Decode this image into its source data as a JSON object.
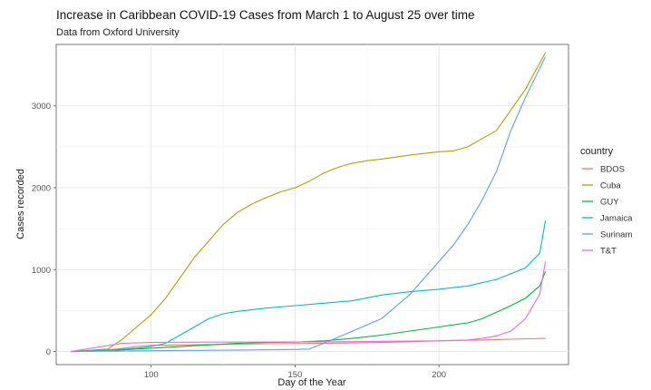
{
  "chart_data": {
    "type": "line",
    "title": "Increase in Caribbean COVID-19 Cases from March 1 to August 25 over time",
    "subtitle": "Data from Oxford University",
    "xlabel": "Day of the Year",
    "ylabel": "Cases recorded",
    "xlim": [
      67,
      245
    ],
    "ylim": [
      -160,
      3750
    ],
    "x_ticks": [
      100,
      150,
      200
    ],
    "y_ticks": [
      0,
      1000,
      2000,
      3000
    ],
    "grid": true,
    "legend_title": "country",
    "legend_position": "right",
    "series": [
      {
        "name": "BDOS",
        "color": "#f8766d",
        "points": [
          [
            72,
            0
          ],
          [
            80,
            5
          ],
          [
            88,
            30
          ],
          [
            95,
            60
          ],
          [
            100,
            75
          ],
          [
            110,
            80
          ],
          [
            120,
            85
          ],
          [
            140,
            95
          ],
          [
            160,
            100
          ],
          [
            180,
            110
          ],
          [
            200,
            130
          ],
          [
            215,
            140
          ],
          [
            225,
            150
          ],
          [
            237,
            160
          ]
        ]
      },
      {
        "name": "Cuba",
        "color": "#b79f00",
        "points": [
          [
            72,
            0
          ],
          [
            85,
            30
          ],
          [
            90,
            150
          ],
          [
            95,
            300
          ],
          [
            100,
            450
          ],
          [
            105,
            650
          ],
          [
            110,
            900
          ],
          [
            115,
            1150
          ],
          [
            120,
            1350
          ],
          [
            125,
            1550
          ],
          [
            130,
            1700
          ],
          [
            135,
            1800
          ],
          [
            140,
            1880
          ],
          [
            145,
            1950
          ],
          [
            150,
            2000
          ],
          [
            155,
            2080
          ],
          [
            160,
            2180
          ],
          [
            165,
            2250
          ],
          [
            170,
            2300
          ],
          [
            175,
            2330
          ],
          [
            180,
            2350
          ],
          [
            190,
            2400
          ],
          [
            200,
            2440
          ],
          [
            205,
            2450
          ],
          [
            210,
            2500
          ],
          [
            215,
            2600
          ],
          [
            220,
            2700
          ],
          [
            225,
            2950
          ],
          [
            230,
            3200
          ],
          [
            237,
            3650
          ]
        ]
      },
      {
        "name": "GUY",
        "color": "#00ba38",
        "points": [
          [
            72,
            0
          ],
          [
            80,
            5
          ],
          [
            90,
            20
          ],
          [
            100,
            40
          ],
          [
            110,
            60
          ],
          [
            120,
            80
          ],
          [
            130,
            100
          ],
          [
            140,
            110
          ],
          [
            150,
            115
          ],
          [
            160,
            130
          ],
          [
            170,
            160
          ],
          [
            180,
            200
          ],
          [
            190,
            250
          ],
          [
            200,
            300
          ],
          [
            210,
            350
          ],
          [
            215,
            400
          ],
          [
            220,
            480
          ],
          [
            225,
            560
          ],
          [
            230,
            650
          ],
          [
            235,
            800
          ],
          [
            237,
            980
          ]
        ]
      },
      {
        "name": "Jamaica",
        "color": "#00bfc4",
        "points": [
          [
            72,
            0
          ],
          [
            85,
            15
          ],
          [
            95,
            40
          ],
          [
            100,
            60
          ],
          [
            105,
            100
          ],
          [
            110,
            200
          ],
          [
            115,
            300
          ],
          [
            120,
            400
          ],
          [
            125,
            460
          ],
          [
            130,
            490
          ],
          [
            140,
            530
          ],
          [
            150,
            560
          ],
          [
            160,
            590
          ],
          [
            170,
            620
          ],
          [
            180,
            690
          ],
          [
            190,
            730
          ],
          [
            200,
            760
          ],
          [
            210,
            800
          ],
          [
            220,
            880
          ],
          [
            225,
            950
          ],
          [
            230,
            1020
          ],
          [
            235,
            1200
          ],
          [
            237,
            1600
          ]
        ]
      },
      {
        "name": "Surinam",
        "color": "#619cff",
        "points": [
          [
            72,
            0
          ],
          [
            85,
            5
          ],
          [
            100,
            10
          ],
          [
            120,
            15
          ],
          [
            140,
            20
          ],
          [
            150,
            25
          ],
          [
            155,
            30
          ],
          [
            160,
            100
          ],
          [
            170,
            250
          ],
          [
            180,
            400
          ],
          [
            185,
            550
          ],
          [
            190,
            700
          ],
          [
            195,
            900
          ],
          [
            200,
            1100
          ],
          [
            205,
            1300
          ],
          [
            210,
            1550
          ],
          [
            215,
            1850
          ],
          [
            220,
            2200
          ],
          [
            225,
            2700
          ],
          [
            230,
            3100
          ],
          [
            237,
            3600
          ]
        ]
      },
      {
        "name": "T&T",
        "color": "#f564e3",
        "points": [
          [
            72,
            0
          ],
          [
            90,
            100
          ],
          [
            100,
            110
          ],
          [
            120,
            115
          ],
          [
            140,
            116
          ],
          [
            160,
            117
          ],
          [
            180,
            125
          ],
          [
            200,
            130
          ],
          [
            210,
            140
          ],
          [
            215,
            160
          ],
          [
            220,
            190
          ],
          [
            225,
            250
          ],
          [
            230,
            400
          ],
          [
            235,
            700
          ],
          [
            237,
            1100
          ]
        ]
      }
    ]
  }
}
